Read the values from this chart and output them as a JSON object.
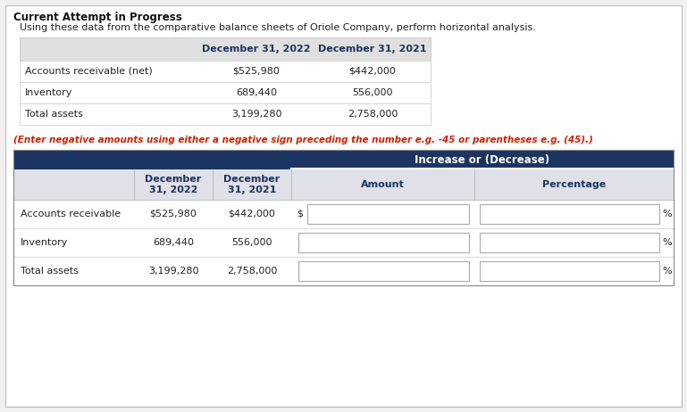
{
  "title": "Current Attempt in Progress",
  "subtitle": "Using these data from the comparative balance sheets of Oriole Company, perform horizontal analysis.",
  "warning_text": "(Enter negative amounts using either a negative sign preceding the number e.g. -45 or parentheses e.g. (45).)",
  "top_table": {
    "headers": [
      "",
      "December 31, 2022",
      "December 31, 2021"
    ],
    "rows": [
      [
        "Accounts receivable (net)",
        "$525,980",
        "$442,000"
      ],
      [
        "Inventory",
        "689,440",
        "556,000"
      ],
      [
        "Total assets",
        "3,199,280",
        "2,758,000"
      ]
    ]
  },
  "bottom_table": {
    "group_header": "Increase or (Decrease)",
    "col_headers": [
      "",
      "December\n31, 2022",
      "December\n31, 2021",
      "Amount",
      "Percentage"
    ],
    "rows": [
      [
        "Accounts receivable",
        "$525,980",
        "$442,000"
      ],
      [
        "Inventory",
        "689,440",
        "556,000"
      ],
      [
        "Total assets",
        "3,199,280",
        "2,758,000"
      ]
    ],
    "amount_prefix": [
      "$",
      "",
      ""
    ],
    "pct_suffix": [
      "%",
      "%",
      "%"
    ]
  },
  "colors": {
    "background": "#f0f0f0",
    "page_bg": "#ffffff",
    "outer_border": "#cccccc",
    "top_table_header_bg": "#e0e0e0",
    "bottom_header_dark": "#1c3461",
    "bottom_header_text": "#ffffff",
    "bottom_subheader_bg": "#e0e0e8",
    "input_box_bg": "#ffffff",
    "input_box_border": "#aaaaaa",
    "warning_color": "#cc2200",
    "text_color": "#222222",
    "border_color": "#c8c8c8",
    "title_color": "#111111",
    "dark_blue_text": "#1c3461"
  },
  "fonts": {
    "title_size": 8.5,
    "subtitle_size": 8.0,
    "warning_size": 7.5,
    "table_header_size": 8.0,
    "table_cell_size": 8.0
  }
}
